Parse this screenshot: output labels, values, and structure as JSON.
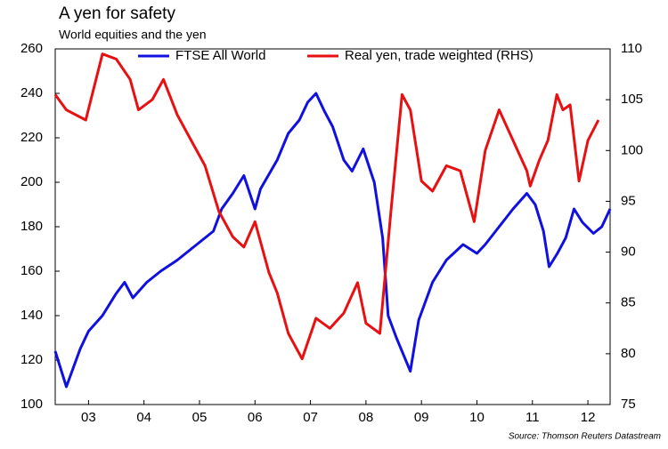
{
  "chart_data": {
    "type": "line",
    "title": "A yen for safety",
    "subtitle": "World equities and the yen",
    "source": "Source: Thomson Reuters Datastream",
    "xlim": [
      2.9,
      12.9
    ],
    "xticks": [
      {
        "value": 3.5,
        "label": "03"
      },
      {
        "value": 4.5,
        "label": "04"
      },
      {
        "value": 5.5,
        "label": "05"
      },
      {
        "value": 6.5,
        "label": "06"
      },
      {
        "value": 7.5,
        "label": "07"
      },
      {
        "value": 8.5,
        "label": "08"
      },
      {
        "value": 9.5,
        "label": "09"
      },
      {
        "value": 10.5,
        "label": "10"
      },
      {
        "value": 11.5,
        "label": "11"
      },
      {
        "value": 12.5,
        "label": "12"
      }
    ],
    "ylim": [
      100,
      260
    ],
    "yticks": [
      100,
      120,
      140,
      160,
      180,
      200,
      220,
      240,
      260
    ],
    "y2lim": [
      75,
      110
    ],
    "y2ticks": [
      75,
      80,
      85,
      90,
      95,
      100,
      105,
      110
    ],
    "grid": false,
    "legend": "top",
    "series": [
      {
        "name": "FTSE All World",
        "color": "#1010e0",
        "x": [
          2.9,
          3.1,
          3.35,
          3.5,
          3.75,
          4.0,
          4.15,
          4.3,
          4.55,
          4.8,
          5.1,
          5.45,
          5.75,
          5.9,
          6.1,
          6.3,
          6.5,
          6.6,
          6.9,
          7.1,
          7.3,
          7.45,
          7.6,
          7.75,
          7.9,
          8.1,
          8.25,
          8.45,
          8.65,
          8.8,
          8.9,
          9.05,
          9.3,
          9.45,
          9.7,
          9.95,
          10.25,
          10.5,
          10.65,
          10.9,
          11.15,
          11.4,
          11.55,
          11.7,
          11.8,
          11.95,
          12.1,
          12.25,
          12.4,
          12.6,
          12.75,
          12.9
        ],
        "values": [
          124,
          108,
          125,
          133,
          140,
          150,
          155,
          148,
          155,
          160,
          165,
          172,
          178,
          188,
          195,
          203,
          188,
          197,
          210,
          222,
          228,
          236,
          240,
          232,
          225,
          210,
          205,
          215,
          200,
          175,
          140,
          130,
          115,
          138,
          155,
          165,
          172,
          168,
          172,
          180,
          188,
          195,
          190,
          178,
          162,
          168,
          175,
          188,
          182,
          177,
          180,
          188
        ]
      },
      {
        "name": "Real yen, trade weighted (RHS)",
        "color": "#e81010",
        "axis": "y2",
        "x": [
          2.9,
          3.1,
          3.45,
          3.75,
          4.0,
          4.25,
          4.4,
          4.65,
          4.85,
          5.1,
          5.35,
          5.6,
          5.85,
          6.1,
          6.3,
          6.5,
          6.75,
          6.9,
          7.1,
          7.35,
          7.6,
          7.85,
          8.1,
          8.35,
          8.5,
          8.75,
          8.95,
          9.15,
          9.3,
          9.5,
          9.7,
          9.95,
          10.2,
          10.45,
          10.65,
          10.9,
          11.15,
          11.4,
          11.46,
          11.62,
          11.78,
          11.94,
          12.05,
          12.18,
          12.34,
          12.5,
          12.69
        ],
        "values": [
          105.5,
          104,
          103,
          109.5,
          109,
          107,
          104,
          105,
          107,
          103.5,
          101,
          98.5,
          94,
          91.5,
          90.5,
          93,
          88,
          86,
          82,
          79.5,
          83.5,
          82.5,
          84,
          87,
          83,
          82,
          94,
          105.5,
          104,
          97,
          96,
          98.5,
          98,
          93,
          100,
          104,
          101,
          98,
          96.5,
          99,
          101,
          105.5,
          104,
          104.5,
          97,
          101,
          103
        ]
      }
    ]
  }
}
